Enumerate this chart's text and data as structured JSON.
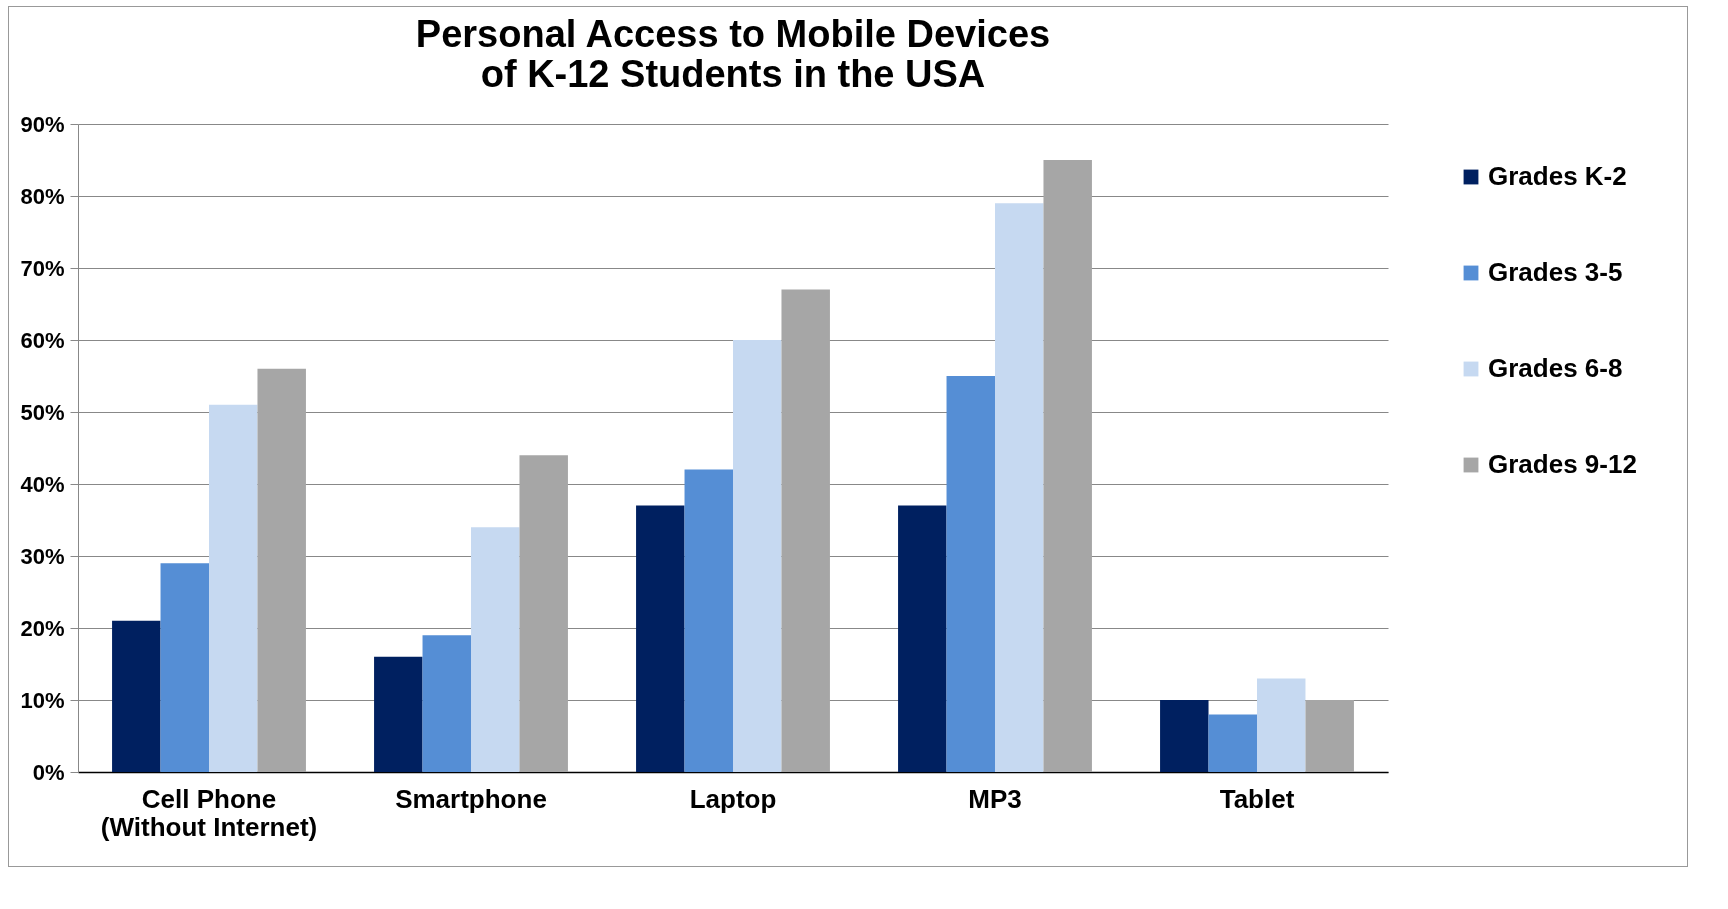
{
  "chart_data": {
    "type": "bar",
    "title": "Personal Access to Mobile Devices\nof K-12 Students in the USA",
    "categories": [
      "Cell Phone\n(Without Internet)",
      "Smartphone",
      "Laptop",
      "MP3",
      "Tablet"
    ],
    "series": [
      {
        "name": "Grades K-2",
        "color": "#002060",
        "values": [
          21,
          16,
          37,
          37,
          10
        ]
      },
      {
        "name": "Grades 3-5",
        "color": "#558ed5",
        "values": [
          29,
          19,
          42,
          55,
          8
        ]
      },
      {
        "name": "Grades 6-8",
        "color": "#c6d9f1",
        "values": [
          51,
          34,
          60,
          79,
          13
        ]
      },
      {
        "name": "Grades 9-12",
        "color": "#a6a6a6",
        "values": [
          56,
          44,
          67,
          85,
          10
        ]
      }
    ],
    "ylim": [
      0,
      90
    ],
    "yticks": [
      {
        "value": 0,
        "label": "0%"
      },
      {
        "value": 10,
        "label": "10%"
      },
      {
        "value": 20,
        "label": "20%"
      },
      {
        "value": 30,
        "label": "30%"
      },
      {
        "value": 40,
        "label": "40%"
      },
      {
        "value": 50,
        "label": "50%"
      },
      {
        "value": 60,
        "label": "60%"
      },
      {
        "value": 70,
        "label": "70%"
      },
      {
        "value": 80,
        "label": "80%"
      },
      {
        "value": 90,
        "label": "90%"
      }
    ],
    "grid": "y",
    "legend": "right"
  }
}
